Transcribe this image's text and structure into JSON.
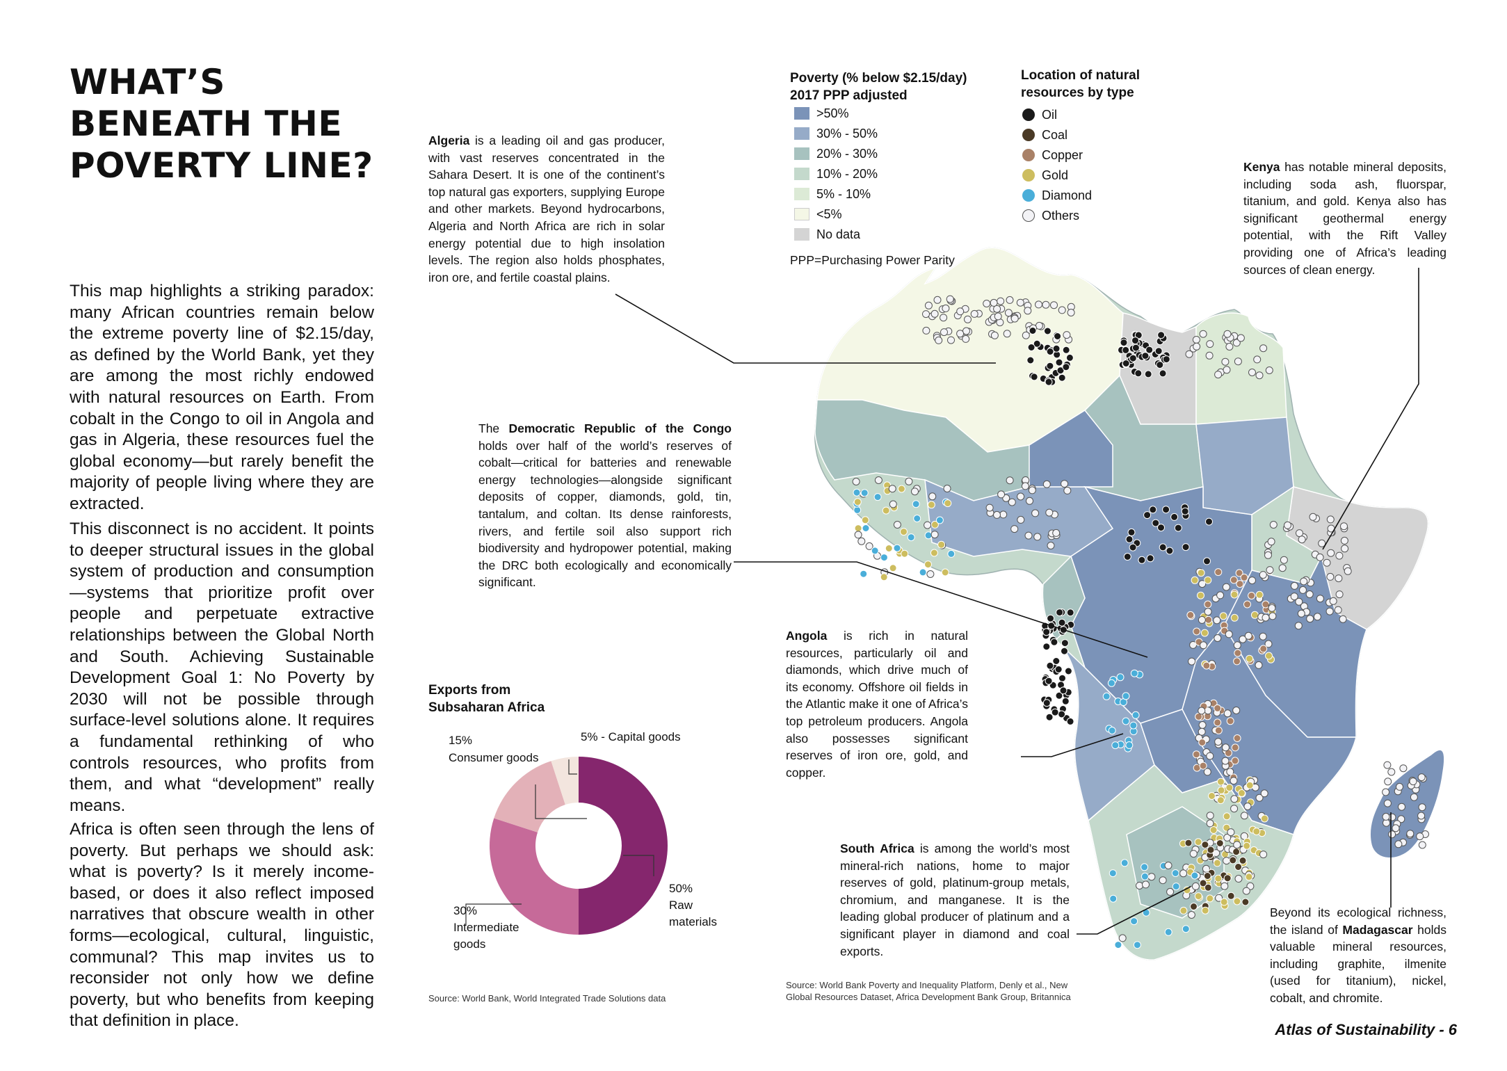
{
  "title_lines": [
    "WHAT’S",
    "BENEATH THE",
    "POVERTY LINE?"
  ],
  "paragraphs": [
    "This map highlights a striking paradox: many African countries remain below the extreme poverty line of $2.15/day, as defined by the World Bank, yet they are among the most richly endowed with natural resources on Earth. From cobalt in the Congo to oil in Angola and gas in Algeria, these resources fuel the global economy—but rarely benefit the majority of people living where they are extracted.",
    "This disconnect is no accident. It points to deeper structural issues in the global system of production and consumption—systems that prioritize profit over people and perpetuate extractive relationships between the Global North and South. Achieving Sustainable Development Goal 1: No Poverty by 2030 will not be possible through surface-level solutions alone. It requires a fundamental rethinking of who controls resources, who profits from them, and what “development” really means.",
    "Africa is often seen through the lens of poverty. But perhaps we should ask: what is poverty? Is it merely income-based, or does it also reflect imposed narratives that obscure wealth in other forms—ecological, cultural, linguistic, communal? This map invites us to reconsider not only how we define poverty, but who benefits from keeping that definition in place."
  ],
  "poverty_legend": {
    "title_line1": "Poverty (% below $2.15/day)",
    "title_line2": "2017 PPP adjusted",
    "items": [
      {
        "label": ">50%",
        "color": "#7b93b8"
      },
      {
        "label": "30% - 50%",
        "color": "#96abc8"
      },
      {
        "label": "20% - 30%",
        "color": "#a7c2bf"
      },
      {
        "label": "10% - 20%",
        "color": "#c4d9cc"
      },
      {
        "label": "5% - 10%",
        "color": "#dcead6"
      },
      {
        "label": "<5%",
        "color": "#f4f7e6"
      },
      {
        "label": "No data",
        "color": "#d4d4d4"
      }
    ],
    "note": "PPP=Purchasing Power Parity"
  },
  "resources_legend": {
    "title_line1": "Location of natural",
    "title_line2": "resources by type",
    "items": [
      {
        "label": "Oil",
        "color": "#1a1a1a"
      },
      {
        "label": "Coal",
        "color": "#4a3a26"
      },
      {
        "label": "Copper",
        "color": "#a98167"
      },
      {
        "label": "Gold",
        "color": "#cdbd5f"
      },
      {
        "label": "Diamond",
        "color": "#4aaed9"
      },
      {
        "label": "Others",
        "color": "#f3f3f6"
      }
    ]
  },
  "annotations": {
    "algeria": {
      "bold": "Algeria",
      "text": " is a leading oil and gas producer, with vast reserves concentrated in the Sahara Desert. It is one of the continent’s top natural gas exporters, supplying Europe and other markets. Beyond hydrocarbons, Algeria and North Africa are rich in solar energy potential due to high insolation levels. The region also holds phosphates, iron ore, and fertile coastal plains."
    },
    "drc": {
      "pre": "The ",
      "bold": "Democratic Republic of the Congo",
      "text": " holds over half of the world’s reserves of cobalt—critical for batteries and renewable energy technologies—alongside significant deposits of copper, diamonds, gold, tin, tantalum, and coltan. Its dense rainforests, rivers, and fertile soil also support rich biodiversity and hydropower potential, making the DRC both ecologically and economically significant."
    },
    "kenya": {
      "bold": "Kenya",
      "text": " has notable mineral deposits, including soda ash, fluorspar, titanium, and gold. Kenya also has significant geothermal energy potential, with the Rift Valley providing one of Africa’s leading sources of clean energy."
    },
    "angola": {
      "bold": "Angola",
      "text": " is rich in natural resources, particularly oil and diamonds, which drive much of its economy. Offshore oil fields in the Atlantic make it one of Africa’s top petroleum producers. Angola also possesses significant reserves of iron ore, gold, and copper."
    },
    "south_africa": {
      "bold": "South Africa",
      "text": " is among the world’s most mineral-rich nations, home to major reserves of gold, platinum-group metals, chromium, and manganese. It is the leading global producer of platinum and a significant player in diamond and coal exports."
    },
    "madagascar": {
      "pre": "Beyond its ecological richness, the island of ",
      "bold": "Madagascar",
      "text": " holds valuable mineral resources, including graphite, ilmenite (used for titanium), nickel, cobalt, and chromite."
    }
  },
  "chart_data": {
    "type": "pie",
    "title_line1": "Exports from",
    "title_line2": "Subsaharan Africa",
    "categories": [
      "Raw materials",
      "Intermediate goods",
      "Consumer goods",
      "Capital goods"
    ],
    "values": [
      50,
      30,
      15,
      5
    ],
    "colors": [
      "#85266d",
      "#c66a99",
      "#e3b1b8",
      "#f3e5de"
    ],
    "labels": {
      "raw_pct": "50%",
      "raw_1": "Raw",
      "raw_2": "materials",
      "inter_pct": "30%",
      "inter_1": "Intermediate",
      "inter_2": "goods",
      "cons_pct": "15%",
      "cons_1": "Consumer goods",
      "cap": "5% - Capital goods"
    },
    "source": "Source: World Bank, World Integrated Trade Solutions data"
  },
  "map_source_line1": "Source: World Bank Poverty and Inequality Platform, Denly et al., New",
  "map_source_line2": "Global Resources Dataset, Africa Development Bank Group, Britannica",
  "footer": "Atlas of Sustainability - 6"
}
